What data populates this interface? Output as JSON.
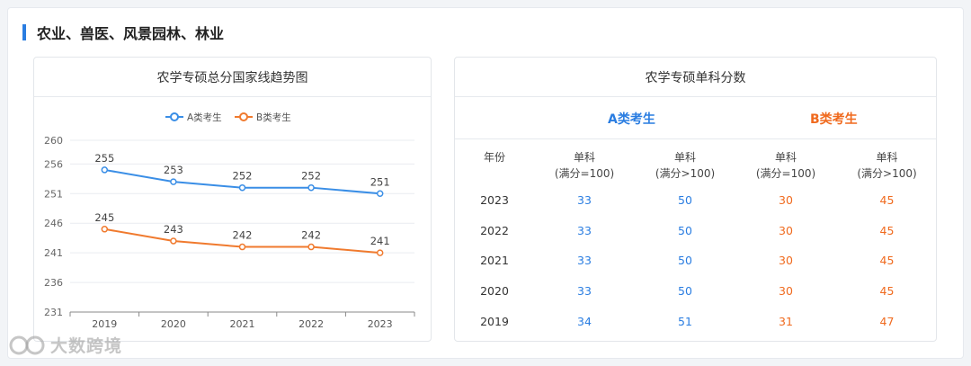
{
  "section": {
    "title": "农业、兽医、风景园林、林业"
  },
  "chart_card": {
    "title": "农学专硕总分国家线趋势图"
  },
  "chart_data": {
    "type": "line",
    "categories": [
      "2019",
      "2020",
      "2021",
      "2022",
      "2023"
    ],
    "series": [
      {
        "name": "A类考生",
        "values": [
          255,
          253,
          252,
          252,
          251
        ],
        "color": "#3a8ee6"
      },
      {
        "name": "B类考生",
        "values": [
          245,
          243,
          242,
          242,
          241
        ],
        "color": "#f07a2e"
      }
    ],
    "yticks": [
      231,
      236,
      241,
      246,
      251,
      256,
      260
    ],
    "ylim": [
      231,
      260
    ],
    "legend": "top-center",
    "grid": true
  },
  "table_card": {
    "title": "农学专硕单科分数",
    "group_a": "A类考生",
    "group_b": "B类考生",
    "headers": [
      {
        "l1": "年份",
        "l2": ""
      },
      {
        "l1": "单科",
        "l2": "(满分=100)"
      },
      {
        "l1": "单科",
        "l2": "(满分>100)"
      },
      {
        "l1": "单科",
        "l2": "(满分=100)"
      },
      {
        "l1": "单科",
        "l2": "(满分>100)"
      }
    ],
    "rows": [
      [
        "2023",
        "33",
        "50",
        "30",
        "45"
      ],
      [
        "2022",
        "33",
        "50",
        "30",
        "45"
      ],
      [
        "2021",
        "33",
        "50",
        "30",
        "45"
      ],
      [
        "2020",
        "33",
        "50",
        "30",
        "45"
      ],
      [
        "2019",
        "34",
        "51",
        "31",
        "47"
      ]
    ]
  },
  "watermark": {
    "text": "大数跨境"
  }
}
